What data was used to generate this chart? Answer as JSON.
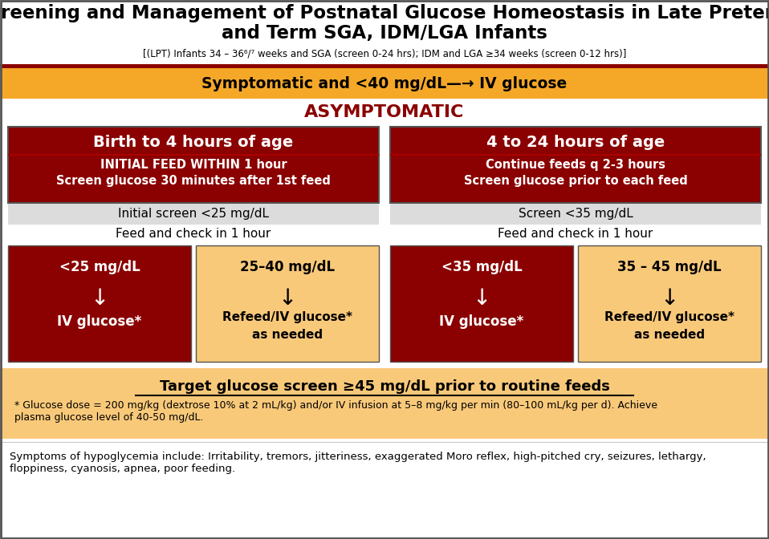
{
  "title_line1": "Screening and Management of Postnatal Glucose Homeostasis in Late Preterm",
  "title_line2": "and Term SGA, IDM/LGA Infants",
  "subtitle": "[(LPT) Infants 34 – 36⁶/⁷ weeks and SGA (screen 0-24 hrs); IDM and LGA ≥34 weeks (screen 0-12 hrs)]",
  "symptomatic_bar_text": "Symptomatic and <40 mg/dL—→ IV glucose",
  "asymptomatic_text": "ASYMPTOMATIC",
  "left_header": "Birth to 4 hours of age",
  "left_subheader1": "INITIAL FEED WITHIN 1 hour",
  "left_subheader2": "Screen glucose 30 minutes after 1st feed",
  "right_header": "4 to 24 hours of age",
  "right_subheader1": "Continue feeds q 2-3 hours",
  "right_subheader2": "Screen glucose prior to each feed",
  "left_screen_text": "Initial screen <25 mg/dL",
  "right_screen_text": "Screen <35 mg/dL",
  "left_feed_text": "Feed and check in 1 hour",
  "right_feed_text": "Feed and check in 1 hour",
  "box1_top": "<25 mg/dL",
  "box1_bottom": "IV glucose*",
  "box2_top": "25–40 mg/dL",
  "box2_mid": "Refeed/IV glucose*",
  "box2_bottom": "as needed",
  "box3_top": "<35 mg/dL",
  "box3_bottom": "IV glucose*",
  "box4_top": "35 – 45 mg/dL",
  "box4_mid": "Refeed/IV glucose*",
  "box4_bottom": "as needed",
  "target_text_bold": "Target glucose screen ≥45 mg/dL prior to routine feeds",
  "target_text_note": "* Glucose dose = 200 mg/kg (dextrose 10% at 2 mL/kg) and/or IV infusion at 5–8 mg/kg per min (80–100 mL/kg per d). Achieve\nplasma glucose level of 40-50 mg/dL.",
  "symptoms_text": "Symptoms of hypoglycemia include: Irritability, tremors, jitteriness, exaggerated Moro reflex, high-pitched cry, seizures, lethargy,\nfloppiness, cyanosis, apnea, poor feeding.",
  "dark_red": "#8B0000",
  "orange_bg": "#F5A828",
  "light_orange": "#F9C97A",
  "white": "#FFFFFF",
  "black": "#000000",
  "gray_bg": "#DCDCDC",
  "bg_color": "#FFFFFF"
}
